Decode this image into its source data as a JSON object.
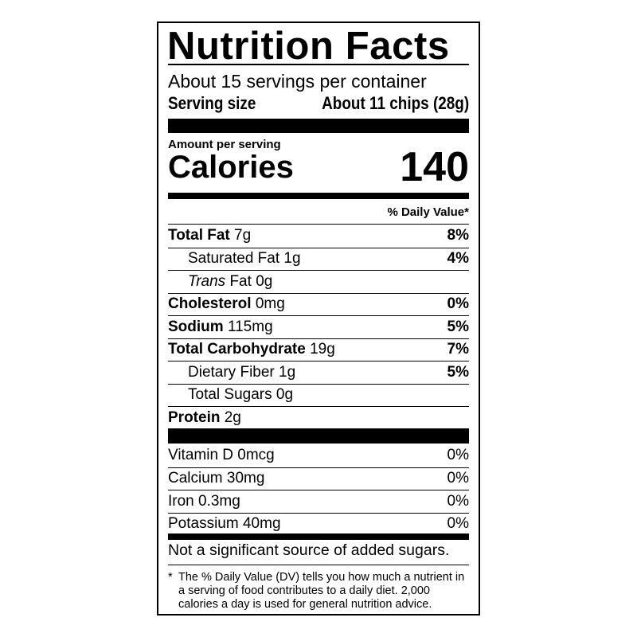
{
  "title": "Nutrition Facts",
  "servings_per_container": "About 15 servings per container",
  "serving_size": {
    "label": "Serving size",
    "value": "About 11 chips (28g)"
  },
  "amount_per_serving": "Amount per serving",
  "calories": {
    "label": "Calories",
    "value": "140"
  },
  "daily_value_header": "% Daily Value*",
  "nutrients": [
    {
      "name": "Total Fat",
      "amount": "7g",
      "dv": "8%",
      "bold": true,
      "indent": false
    },
    {
      "name": "Saturated Fat",
      "amount": "1g",
      "dv": "4%",
      "bold": false,
      "indent": true
    },
    {
      "name": "Trans",
      "name_suffix": "Fat",
      "amount": "0g",
      "dv": "",
      "bold": false,
      "indent": true
    },
    {
      "name": "Cholesterol",
      "amount": "0mg",
      "dv": "0%",
      "bold": true,
      "indent": false
    },
    {
      "name": "Sodium",
      "amount": "115mg",
      "dv": "5%",
      "bold": true,
      "indent": false
    },
    {
      "name": "Total Carbohydrate",
      "amount": "19g",
      "dv": "7%",
      "bold": true,
      "indent": false
    },
    {
      "name": "Dietary Fiber",
      "amount": "1g",
      "dv": "5%",
      "bold": false,
      "indent": true
    },
    {
      "name": "Total Sugars",
      "amount": "0g",
      "dv": "",
      "bold": false,
      "indent": true
    },
    {
      "name": "Protein",
      "amount": "2g",
      "dv": "",
      "bold": true,
      "indent": false
    }
  ],
  "vitamins": [
    {
      "name": "Vitamin D 0mcg",
      "dv": "0%"
    },
    {
      "name": "Calcium 30mg",
      "dv": "0%"
    },
    {
      "name": "Iron 0.3mg",
      "dv": "0%"
    },
    {
      "name": "Potassium 40mg",
      "dv": "0%"
    }
  ],
  "added_sugars_note": "Not a significant source of added sugars.",
  "footnote": {
    "star": "*",
    "text": "The % Daily Value (DV) tells you how much a nutrient in a serving of food contributes to a daily diet. 2,000 calories a day is used for general nutrition advice."
  }
}
